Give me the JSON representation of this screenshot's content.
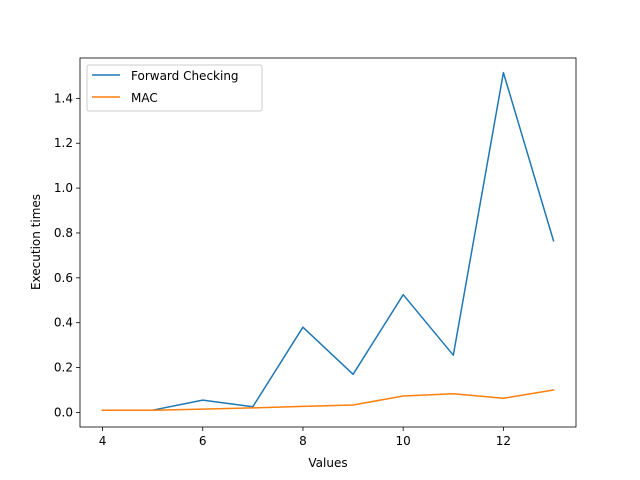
{
  "chart_data": {
    "type": "line",
    "title": "",
    "xlabel": "Values",
    "ylabel": "Execution times",
    "xlim": [
      3.55,
      13.45
    ],
    "ylim": [
      -0.065,
      1.58
    ],
    "x_ticks": [
      4,
      6,
      8,
      10,
      12
    ],
    "x_tick_labels": [
      "4",
      "6",
      "8",
      "10",
      "12"
    ],
    "y_ticks": [
      0.0,
      0.2,
      0.4,
      0.6,
      0.8,
      1.0,
      1.2,
      1.4
    ],
    "y_tick_labels": [
      "0.0",
      "0.2",
      "0.4",
      "0.6",
      "0.8",
      "1.0",
      "1.2",
      "1.4"
    ],
    "grid": false,
    "legend_position": "top-left",
    "x": [
      4,
      5,
      6,
      7,
      8,
      9,
      10,
      11,
      12,
      13
    ],
    "series": [
      {
        "name": "Forward Checking",
        "color": "#1f77b4",
        "values": [
          0.01,
          0.01,
          0.055,
          0.025,
          0.38,
          0.17,
          0.525,
          0.255,
          1.515,
          0.765
        ]
      },
      {
        "name": "MAC",
        "color": "#ff7f0e",
        "values": [
          0.01,
          0.01,
          0.015,
          0.02,
          0.027,
          0.033,
          0.073,
          0.083,
          0.063,
          0.1
        ]
      }
    ]
  }
}
